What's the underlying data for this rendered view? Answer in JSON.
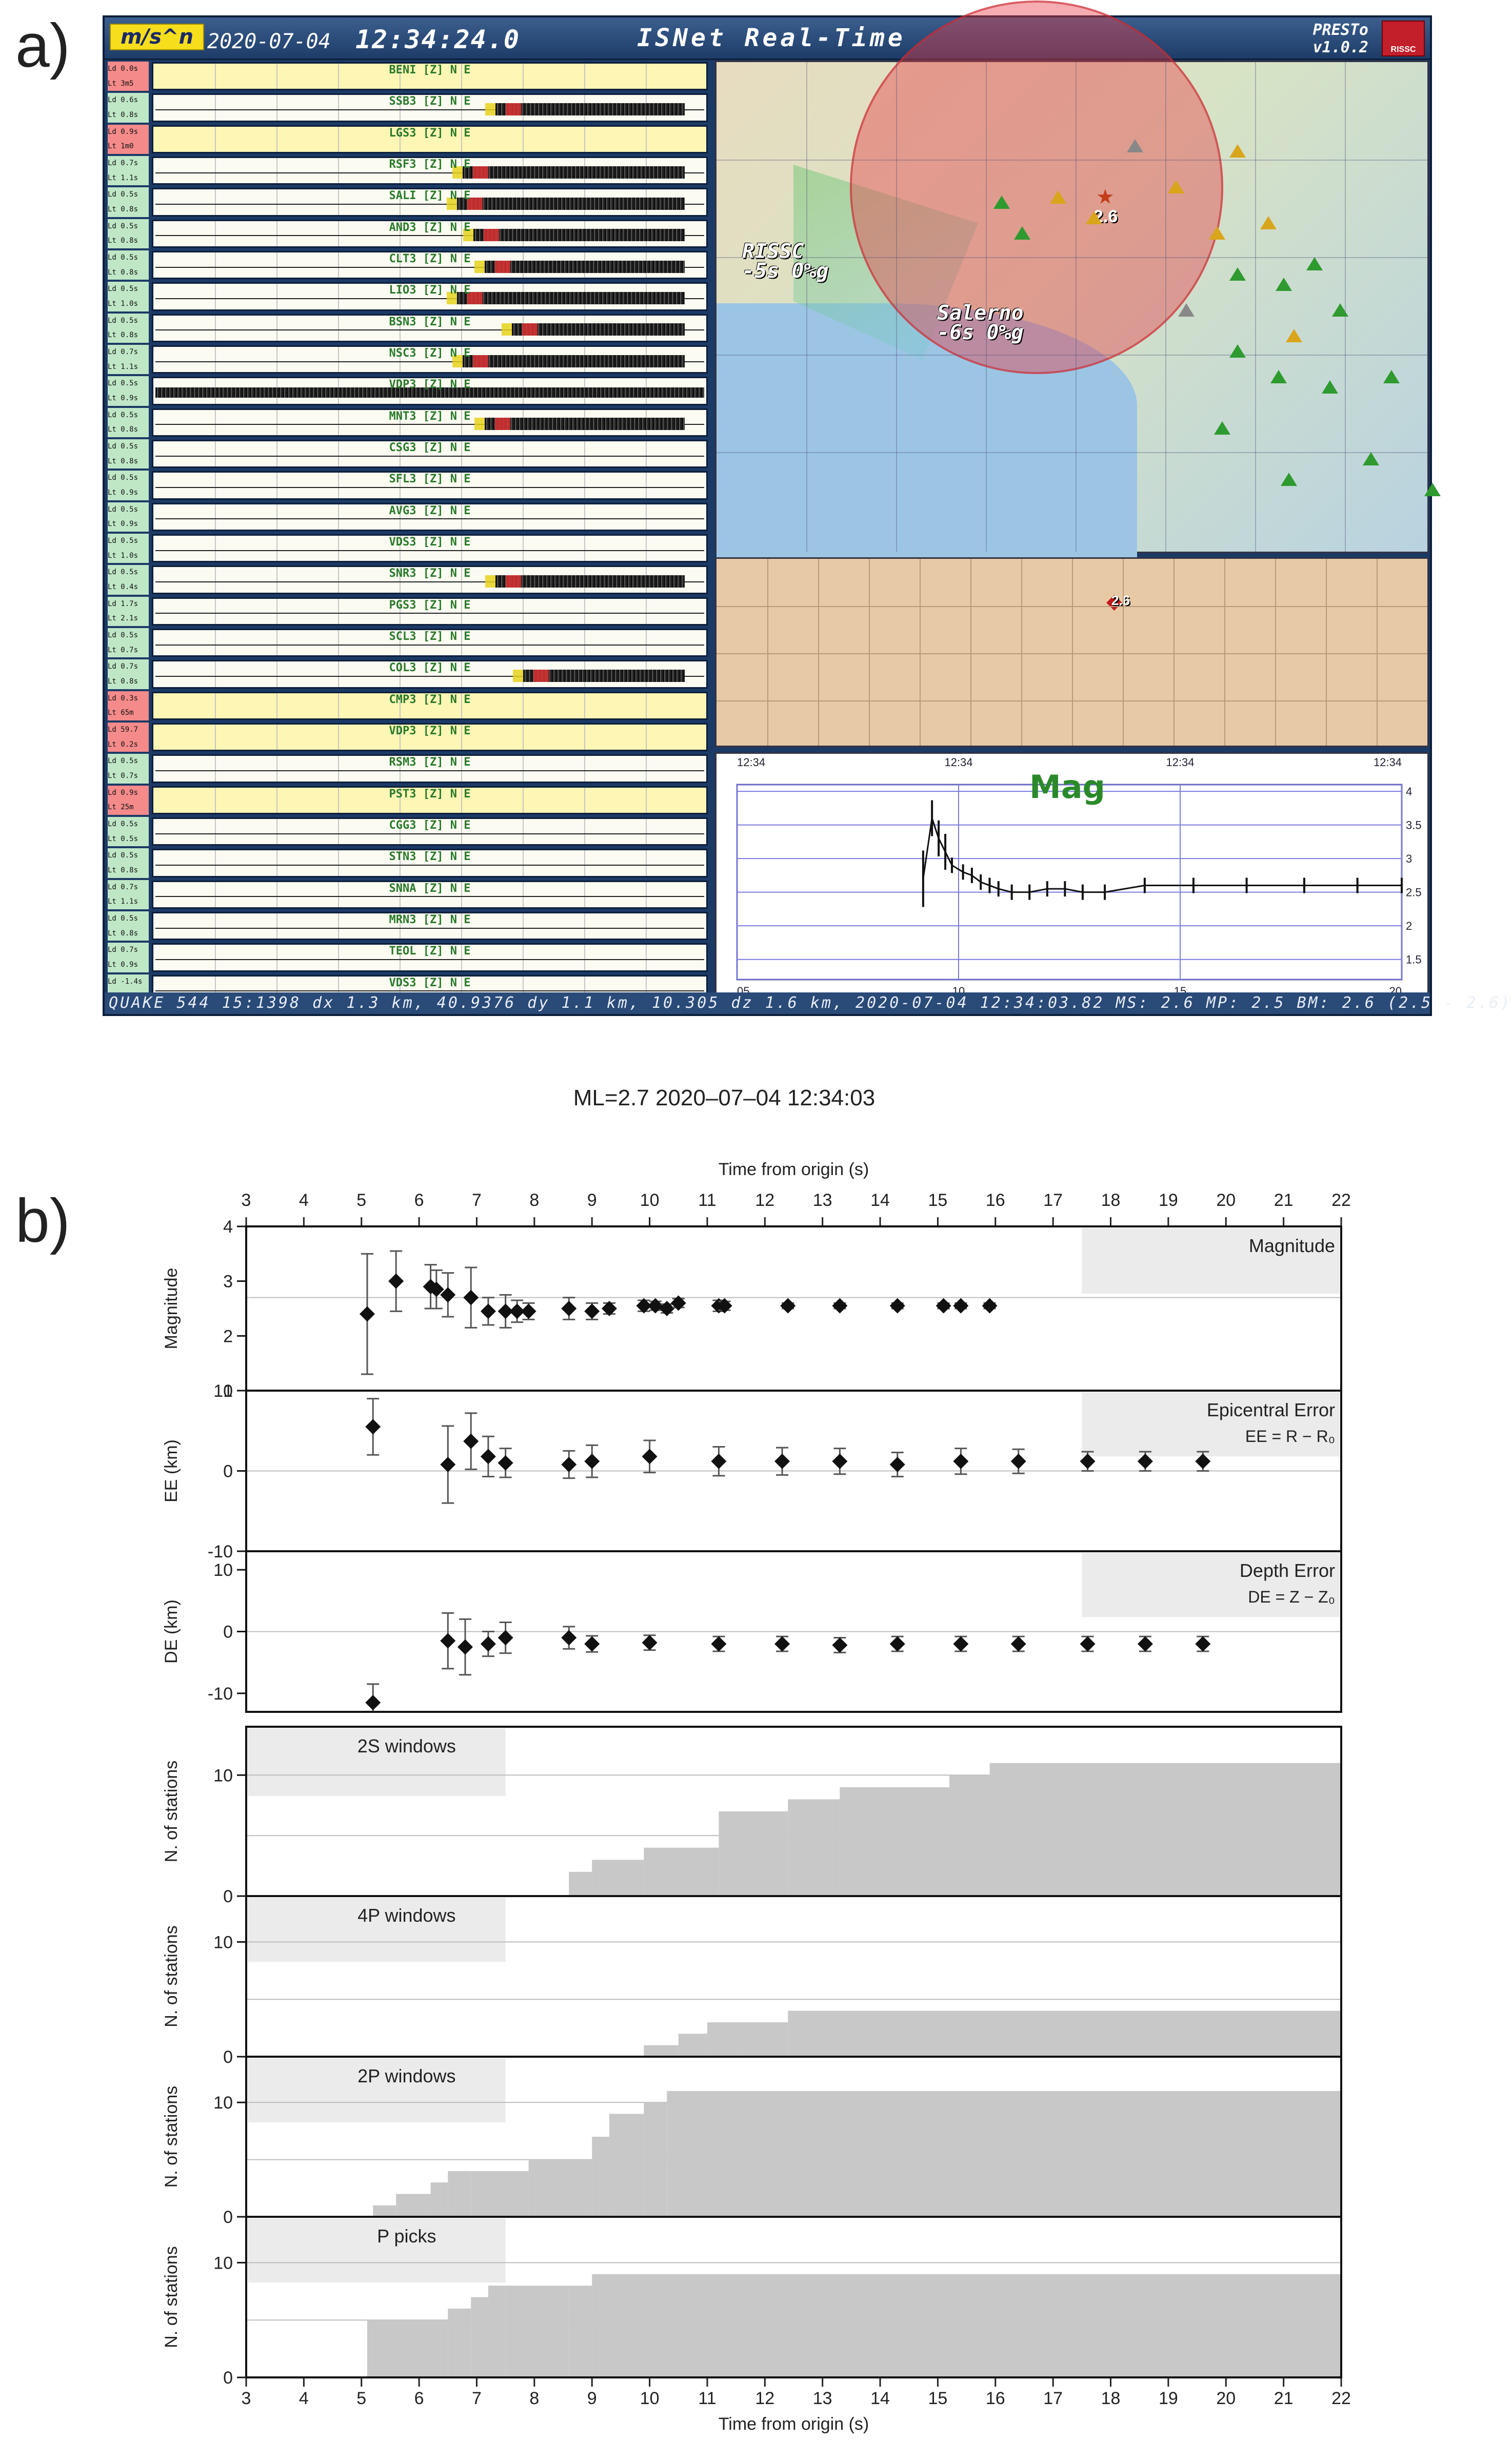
{
  "panel_labels": {
    "a": "a)",
    "b": "b)"
  },
  "presto": {
    "brand": "m/s^n",
    "date": "2020-07-04",
    "time": "12:34:24.0",
    "title": "ISNet Real-Time",
    "app_name": "PRESTo",
    "app_version": "v1.0.2",
    "logo_text": "RISSC",
    "status": "QUAKE 544 15:1398 dx 1.3 km, 40.9376 dy 1.1 km, 10.305 dz 1.6 km, 2020-07-04 12:34:03.82 MS: 2.6 MP: 2.5 BM: 2.6 (2.5 - 2.6)",
    "map_cities": [
      {
        "line1": "RISSC",
        "line2": "-5s 0%g"
      },
      {
        "line1": "Salerno",
        "line2": "-6s 0%g"
      }
    ],
    "map_epicenter_mag": "2.6",
    "section_mag": "2.6",
    "mag_plot": {
      "title": "Mag",
      "top_times": [
        "12:34",
        "12:34",
        "12:34",
        "12:34"
      ],
      "x_ticks": [
        "05",
        "10",
        "15",
        "20"
      ],
      "y_ticks": [
        "1.5",
        "2",
        "2.5",
        "3",
        "3.5",
        "4"
      ],
      "t": [
        9.2,
        9.4,
        9.55,
        9.7,
        9.85,
        10.1,
        10.3,
        10.5,
        10.7,
        10.9,
        11.2,
        11.6,
        12.0,
        12.4,
        12.8,
        13.3,
        14.2,
        15.3,
        16.5,
        17.8,
        19.0,
        20.0
      ],
      "m": [
        2.7,
        3.6,
        3.3,
        3.1,
        2.9,
        2.8,
        2.75,
        2.65,
        2.6,
        2.55,
        2.5,
        2.5,
        2.55,
        2.55,
        2.5,
        2.5,
        2.6,
        2.6,
        2.6,
        2.6,
        2.6,
        2.6
      ]
    },
    "stations": [
      {
        "tag1": "Ld 0.0s",
        "tag2": "Lt 3m5",
        "status": "bad",
        "name": "BENI [Z] N E",
        "data": false
      },
      {
        "tag1": "Ld 0.6s",
        "tag2": "Lt 0.8s",
        "status": "ok",
        "name": "SSB3 [Z] N E",
        "data": true,
        "pick": 0.62
      },
      {
        "tag1": "Ld 0.9s",
        "tag2": "Lt 1m0",
        "status": "bad",
        "name": "LGS3 [Z] N E",
        "data": false
      },
      {
        "tag1": "Ld 0.7s",
        "tag2": "Lt 1.1s",
        "status": "ok",
        "name": "RSF3 [Z] N E",
        "data": true,
        "pick": 0.56
      },
      {
        "tag1": "Ld 0.5s",
        "tag2": "Lt 0.8s",
        "status": "ok",
        "name": "SALI [Z] N E",
        "data": true,
        "pick": 0.55
      },
      {
        "tag1": "Ld 0.5s",
        "tag2": "Lt 0.8s",
        "status": "ok",
        "name": "AND3 [Z] N E",
        "data": true,
        "pick": 0.58
      },
      {
        "tag1": "Ld 0.5s",
        "tag2": "Lt 0.8s",
        "status": "ok",
        "name": "CLT3 [Z] N E",
        "data": true,
        "pick": 0.6
      },
      {
        "tag1": "Ld 0.5s",
        "tag2": "Lt 1.0s",
        "status": "ok",
        "name": "LIO3 [Z] N E",
        "data": true,
        "pick": 0.55
      },
      {
        "tag1": "Ld 0.5s",
        "tag2": "Lt 0.8s",
        "status": "ok",
        "name": "BSN3 [Z] N E",
        "data": true,
        "pick": 0.65
      },
      {
        "tag1": "Ld 0.7s",
        "tag2": "Lt 1.1s",
        "status": "ok",
        "name": "NSC3 [Z] N E",
        "data": true,
        "pick": 0.56
      },
      {
        "tag1": "Ld 0.5s",
        "tag2": "Lt 0.9s",
        "status": "ok",
        "name": "VDP3 [Z] N E",
        "data": true,
        "noise": true
      },
      {
        "tag1": "Ld 0.5s",
        "tag2": "Lt 0.8s",
        "status": "ok",
        "name": "MNT3 [Z] N E",
        "data": true,
        "pick": 0.6
      },
      {
        "tag1": "Ld 0.5s",
        "tag2": "Lt 0.8s",
        "status": "ok",
        "name": "CSG3 [Z] N E",
        "data": true
      },
      {
        "tag1": "Ld 0.5s",
        "tag2": "Lt 0.9s",
        "status": "ok",
        "name": "SFL3 [Z] N E",
        "data": true
      },
      {
        "tag1": "Ld 0.5s",
        "tag2": "Lt 0.9s",
        "status": "ok",
        "name": "AVG3 [Z] N E",
        "data": true
      },
      {
        "tag1": "Ld 0.5s",
        "tag2": "Lt 1.0s",
        "status": "ok",
        "name": "VDS3 [Z] N E",
        "data": true
      },
      {
        "tag1": "Ld 0.5s",
        "tag2": "Lt 0.4s",
        "status": "ok",
        "name": "SNR3 [Z] N E",
        "data": true,
        "pick": 0.62
      },
      {
        "tag1": "Ld 1.7s",
        "tag2": "Lt 2.1s",
        "status": "ok",
        "name": "PGS3 [Z] N E",
        "data": true
      },
      {
        "tag1": "Ld 0.5s",
        "tag2": "Lt 0.7s",
        "status": "ok",
        "name": "SCL3 [Z] N E",
        "data": true
      },
      {
        "tag1": "Ld 0.7s",
        "tag2": "Lt 0.8s",
        "status": "ok",
        "name": "COL3 [Z] N E",
        "data": true,
        "pick": 0.67
      },
      {
        "tag1": "Ld 0.3s",
        "tag2": "Lt 65m",
        "status": "bad",
        "name": "CMP3 [Z] N E",
        "data": false
      },
      {
        "tag1": "Ld 59.7",
        "tag2": "Lt 0.2s",
        "status": "bad",
        "name": "VDP3 [Z] N E",
        "data": false
      },
      {
        "tag1": "Ld 0.5s",
        "tag2": "Lt 0.7s",
        "status": "ok",
        "name": "RSM3 [Z] N E",
        "data": true
      },
      {
        "tag1": "Ld 0.9s",
        "tag2": "Lt 25m",
        "status": "bad",
        "name": "PST3 [Z] N E",
        "data": false
      },
      {
        "tag1": "Ld 0.5s",
        "tag2": "Lt 0.5s",
        "status": "ok",
        "name": "CGG3 [Z] N E",
        "data": true
      },
      {
        "tag1": "Ld 0.5s",
        "tag2": "Lt 0.8s",
        "status": "ok",
        "name": "STN3 [Z] N E",
        "data": true
      },
      {
        "tag1": "Ld 0.7s",
        "tag2": "Lt 1.1s",
        "status": "ok",
        "name": "SNNA [Z] N E",
        "data": true
      },
      {
        "tag1": "Ld 0.5s",
        "tag2": "Lt 0.8s",
        "status": "ok",
        "name": "MRN3 [Z] N E",
        "data": true
      },
      {
        "tag1": "Ld 0.7s",
        "tag2": "Lt 0.9s",
        "status": "ok",
        "name": "TEOL [Z] N E",
        "data": true
      },
      {
        "tag1": "Ld -1.4s",
        "tag2": "Lt 0.4s",
        "status": "ok",
        "name": "VDS3 [Z] N E",
        "data": true
      }
    ]
  },
  "figure_title": "ML=2.7 2020–07–04 12:34:03",
  "chart_data": {
    "type": "scatter",
    "title": "ML=2.7 2020–07–04 12:34:03",
    "xlabel": "Time from origin (s)",
    "xlim": [
      3,
      22
    ],
    "xticks": [
      3,
      4,
      5,
      6,
      7,
      8,
      9,
      10,
      11,
      12,
      13,
      14,
      15,
      16,
      17,
      18,
      19,
      20,
      21,
      22
    ],
    "panels": [
      {
        "kind": "errorbar",
        "label": "Magnitude",
        "label2": "",
        "ylabel": "Magnitude",
        "ylim": [
          1,
          4
        ],
        "yticks": [
          2,
          3,
          4
        ],
        "yticks_extra": [
          "1",
          "4"
        ],
        "refline": 2.7,
        "shade_from": 17.5,
        "x": [
          5.1,
          5.6,
          6.2,
          6.3,
          6.5,
          6.9,
          7.2,
          7.5,
          7.7,
          7.9,
          8.6,
          9.0,
          9.3,
          9.9,
          10.1,
          10.3,
          10.5,
          11.2,
          11.3,
          12.4,
          13.3,
          14.3,
          15.1,
          15.4,
          15.9
        ],
        "y": [
          2.4,
          3.0,
          2.9,
          2.85,
          2.75,
          2.7,
          2.45,
          2.45,
          2.45,
          2.45,
          2.5,
          2.45,
          2.5,
          2.55,
          2.55,
          2.5,
          2.6,
          2.55,
          2.55,
          2.55,
          2.55,
          2.55,
          2.55,
          2.55,
          2.55
        ],
        "err": [
          1.1,
          0.55,
          0.4,
          0.35,
          0.4,
          0.55,
          0.25,
          0.3,
          0.2,
          0.15,
          0.2,
          0.15,
          0.1,
          0.1,
          0.08,
          0.08,
          0.08,
          0.1,
          0.08,
          0.05,
          0.05,
          0.05,
          0.05,
          0.05,
          0.05
        ]
      },
      {
        "kind": "errorbar",
        "label": "Epicentral Error",
        "label2": "EE = R − R₀",
        "ylabel": "EE (km)",
        "ylim": [
          -10,
          10
        ],
        "yticks": [
          -10,
          0,
          10
        ],
        "refline": 0,
        "shade_from": 17.5,
        "x": [
          5.2,
          6.5,
          6.9,
          7.2,
          7.5,
          8.6,
          9.0,
          10.0,
          11.2,
          12.3,
          13.3,
          14.3,
          15.4,
          16.4,
          17.6,
          18.6,
          19.6
        ],
        "y": [
          5.5,
          0.8,
          3.7,
          1.8,
          1.0,
          0.8,
          1.2,
          1.8,
          1.2,
          1.2,
          1.2,
          0.8,
          1.2,
          1.2,
          1.2,
          1.2,
          1.2
        ],
        "err": [
          3.5,
          4.8,
          3.5,
          2.5,
          1.8,
          1.7,
          2.0,
          2.0,
          1.8,
          1.7,
          1.6,
          1.5,
          1.6,
          1.5,
          1.2,
          1.2,
          1.2
        ]
      },
      {
        "kind": "errorbar",
        "label": "Depth Error",
        "label2": "DE = Z − Z₀",
        "ylabel": "DE (km)",
        "ylim": [
          -13,
          13
        ],
        "yticks": [
          -10,
          0,
          10
        ],
        "refline": 0,
        "shade_from": 17.5,
        "x": [
          5.2,
          6.5,
          6.8,
          7.2,
          7.5,
          8.6,
          9.0,
          10.0,
          11.2,
          12.3,
          13.3,
          14.3,
          15.4,
          16.4,
          17.6,
          18.6,
          19.6
        ],
        "y": [
          -11.5,
          -1.5,
          -2.5,
          -2.0,
          -1.0,
          -1.0,
          -2.0,
          -1.8,
          -2.0,
          -2.0,
          -2.2,
          -2.0,
          -2.0,
          -2.0,
          -2.0,
          -2.0,
          -2.0
        ],
        "err": [
          3.0,
          4.5,
          4.5,
          2.0,
          2.5,
          1.8,
          1.3,
          1.2,
          1.2,
          1.2,
          1.2,
          1.2,
          1.2,
          1.2,
          1.2,
          1.2,
          1.2
        ]
      },
      {
        "kind": "step",
        "label": "2S windows",
        "ylabel": "N. of stations",
        "ylim": [
          0,
          14
        ],
        "yticks": [
          0,
          10
        ],
        "refline": 5,
        "shade_to": 7.5,
        "x": [
          3,
          8.6,
          9.0,
          9.9,
          11.2,
          12.4,
          13.3,
          15.2,
          15.9,
          22
        ],
        "y": [
          0,
          2,
          3,
          4,
          7,
          8,
          9,
          10,
          11,
          11
        ]
      },
      {
        "kind": "step",
        "label": "4P windows",
        "ylabel": "N. of stations",
        "ylim": [
          0,
          14
        ],
        "yticks": [
          0,
          10
        ],
        "refline": 5,
        "shade_to": 7.5,
        "x": [
          3,
          9.9,
          10.5,
          11.0,
          11.6,
          12.4,
          22
        ],
        "y": [
          0,
          1,
          2,
          3,
          3,
          4,
          4
        ]
      },
      {
        "kind": "step",
        "label": "2P windows",
        "ylabel": "N. of stations",
        "ylim": [
          0,
          14
        ],
        "yticks": [
          0,
          10
        ],
        "refline": 5,
        "shade_to": 7.5,
        "x": [
          3,
          5.2,
          5.6,
          6.2,
          6.5,
          6.9,
          7.9,
          9.0,
          9.3,
          9.9,
          10.3,
          22
        ],
        "y": [
          0,
          1,
          2,
          3,
          4,
          4,
          5,
          7,
          9,
          10,
          11,
          11
        ]
      },
      {
        "kind": "step",
        "label": "P picks",
        "ylabel": "N. of stations",
        "ylim": [
          0,
          14
        ],
        "yticks": [
          0,
          10
        ],
        "refline": 5,
        "shade_to": 7.5,
        "x": [
          3,
          5.1,
          6.5,
          6.9,
          7.2,
          7.5,
          8.6,
          9.0,
          22
        ],
        "y": [
          0,
          5,
          6,
          7,
          8,
          8,
          8,
          9,
          9
        ]
      }
    ]
  },
  "colors": {
    "bars": "#c8c8c8",
    "shade": "#ebebeb",
    "marker": "#111111",
    "refline": "#bdbdbd"
  }
}
